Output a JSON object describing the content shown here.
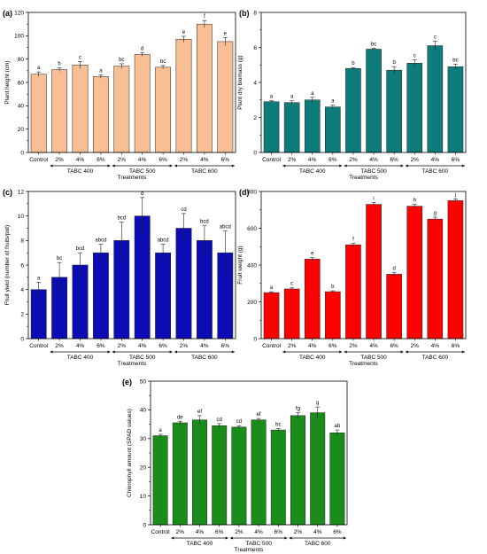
{
  "figure": {
    "x_axis_title": "Treatments",
    "groups": [
      "TABC 400",
      "TABC 500",
      "TABC 600"
    ]
  },
  "chart_data": [
    {
      "type": "bar",
      "panel_label": "(a)",
      "color": "#f9bf94",
      "ylabel": "Plant height (cm)",
      "xlabel": "Treatments",
      "ylim": [
        0,
        120
      ],
      "yticks": [
        0,
        20,
        40,
        60,
        80,
        100,
        120
      ],
      "categories": [
        "Control",
        "2%",
        "4%",
        "6%",
        "2%",
        "4%",
        "6%",
        "2%",
        "4%",
        "6%"
      ],
      "groups": [
        "TABC 400",
        "TABC 500",
        "TABC 600"
      ],
      "values": [
        67,
        71,
        75,
        65,
        74,
        84,
        73,
        97,
        110,
        95
      ],
      "errors": [
        2,
        1.5,
        3,
        1.5,
        2,
        1.5,
        1.5,
        2.5,
        3,
        3.5
      ],
      "letters": [
        "a",
        "b",
        "c",
        "a",
        "bc",
        "d",
        "bc",
        "e",
        "f",
        "e"
      ]
    },
    {
      "type": "bar",
      "panel_label": "(b)",
      "color": "#0e7c7b",
      "ylabel": "Plant dry biomass (g)",
      "xlabel": "Treatments",
      "ylim": [
        0,
        8
      ],
      "yticks": [
        0,
        2,
        4,
        6,
        8
      ],
      "categories": [
        "Control",
        "2%",
        "4%",
        "6%",
        "2%",
        "4%",
        "6%",
        "2%",
        "4%",
        "6%"
      ],
      "groups": [
        "TABC 400",
        "TABC 500",
        "TABC 600"
      ],
      "values": [
        2.9,
        2.85,
        3.0,
        2.6,
        4.8,
        5.9,
        4.7,
        5.1,
        6.1,
        4.9
      ],
      "errors": [
        0.05,
        0.1,
        0.15,
        0.1,
        0.05,
        0.05,
        0.2,
        0.2,
        0.25,
        0.15
      ],
      "letters": [
        "a",
        "a",
        "a",
        "a",
        "b",
        "bc",
        "b",
        "c",
        "c",
        "bc"
      ]
    },
    {
      "type": "bar",
      "panel_label": "(c)",
      "color": "#0c0cb4",
      "ylabel": "Fruit yield (number of fruits/pot)",
      "xlabel": "Treatments",
      "ylim": [
        0,
        12
      ],
      "yticks": [
        0,
        2,
        4,
        6,
        8,
        10,
        12
      ],
      "categories": [
        "Control",
        "2%",
        "4%",
        "6%",
        "2%",
        "4%",
        "6%",
        "2%",
        "4%",
        "6%"
      ],
      "groups": [
        "TABC 400",
        "TABC 500",
        "TABC 600"
      ],
      "values": [
        4,
        5,
        6,
        7,
        8,
        10,
        7,
        9,
        8,
        7
      ],
      "errors": [
        0.6,
        1.2,
        1.0,
        0.7,
        1.5,
        1.5,
        0.7,
        1.2,
        1.2,
        1.8
      ],
      "letters": [
        "a",
        "bc",
        "bcd",
        "abcd",
        "bcd",
        "d",
        "abcd",
        "cd",
        "bcd",
        "abcd"
      ]
    },
    {
      "type": "bar",
      "panel_label": "(d)",
      "color": "#ff0000",
      "ylabel": "Fruit weight (g)",
      "xlabel": "Treatments",
      "ylim": [
        0,
        800
      ],
      "yticks": [
        0,
        200,
        400,
        600,
        800
      ],
      "categories": [
        "Control",
        "2%",
        "4%",
        "6%",
        "2%",
        "4%",
        "6%",
        "2%",
        "4%",
        "6%"
      ],
      "groups": [
        "TABC 400",
        "TABC 500",
        "TABC 600"
      ],
      "values": [
        250,
        270,
        432,
        255,
        510,
        730,
        350,
        720,
        650,
        750
      ],
      "errors": [
        5,
        6,
        8,
        5,
        8,
        10,
        10,
        10,
        10,
        10
      ],
      "letters": [
        "a",
        "c",
        "e",
        "b",
        "f",
        "i",
        "d",
        "h",
        "g",
        "j"
      ]
    },
    {
      "type": "bar",
      "panel_label": "(e)",
      "color": "#1a8c1a",
      "ylabel": "Chlorophyll amount (SPAD values)",
      "xlabel": "Treatments",
      "ylim": [
        0,
        50
      ],
      "yticks": [
        0,
        10,
        20,
        30,
        40,
        50
      ],
      "categories": [
        "Control",
        "2%",
        "4%",
        "6%",
        "2%",
        "4%",
        "6%",
        "2%",
        "4%",
        "6%"
      ],
      "groups": [
        "TABC 400",
        "TABC 500",
        "TABC 600"
      ],
      "values": [
        31,
        35.5,
        36.5,
        34.5,
        34,
        36.5,
        33,
        38,
        39,
        32
      ],
      "errors": [
        0.5,
        0.5,
        1.5,
        0.7,
        0.5,
        0.5,
        0.5,
        1.0,
        2.0,
        1.0
      ],
      "letters": [
        "a",
        "de",
        "ef",
        "cd",
        "cd",
        "ef",
        "bc",
        "fg",
        "g",
        "ab"
      ]
    }
  ]
}
